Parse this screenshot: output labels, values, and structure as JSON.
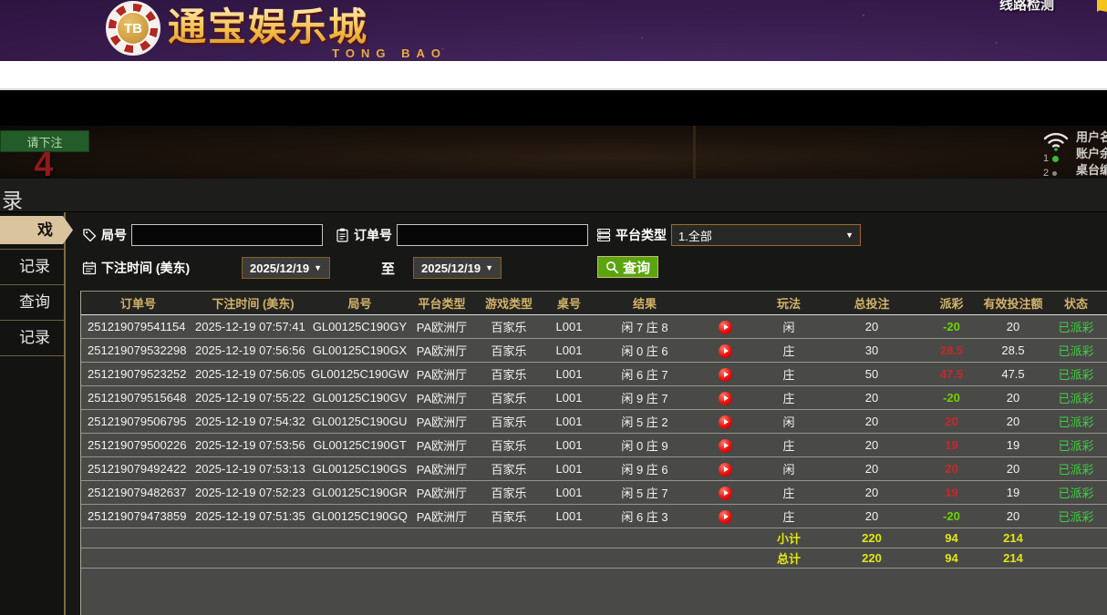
{
  "colors": {
    "accent_gold": "#d2b36a",
    "payout_positive": "#c22b2b",
    "payout_negative": "#6cd400",
    "status_green": "#3fd13f",
    "totals_yellow": "#e3e614",
    "button_green": "#5aa50e"
  },
  "header": {
    "logo_tb": "TB",
    "logo_title": "通宝娱乐城",
    "logo_subtitle": "TONG BAO",
    "line_check": "线路检测"
  },
  "game_bg": {
    "bet_prompt": "请下注",
    "countdown": "4",
    "user_label": "用户名称",
    "balance_label": "账户余额",
    "table_label": "桌台编号",
    "seat1": "1",
    "seat2": "2"
  },
  "panel": {
    "title": "录",
    "sidebar": [
      {
        "label": "戏",
        "active": true
      },
      {
        "label": "记录",
        "active": false
      },
      {
        "label": "查询",
        "active": false
      },
      {
        "label": "记录",
        "active": false
      }
    ]
  },
  "filters": {
    "game_no_label": "局号",
    "game_no_value": "",
    "order_no_label": "订单号",
    "order_no_value": "",
    "platform_label": "平台类型",
    "platform_value": "1.全部",
    "bet_time_label": "下注时间 (美东)",
    "date_from": "2025/12/19",
    "to_label": "至",
    "date_to": "2025/12/19",
    "search_label": "查询"
  },
  "table": {
    "headers": [
      "订单号",
      "下注时间 (美东)",
      "局号",
      "平台类型",
      "游戏类型",
      "桌号",
      "结果",
      "",
      "玩法",
      "总投注",
      "派彩",
      "有效投注额",
      "状态"
    ],
    "rows": [
      {
        "order_no": "251219079541154",
        "bet_time": "2025-12-19 07:57:41",
        "game_no": "GL00125C190GY",
        "platform": "PA欧洲厅",
        "game_type": "百家乐",
        "table_no": "L001",
        "result": "闲 7 庄 8",
        "bet_side": "闲",
        "total_bet": "20",
        "payout": "-20",
        "valid_bet": "20",
        "status": "已派彩"
      },
      {
        "order_no": "251219079532298",
        "bet_time": "2025-12-19 07:56:56",
        "game_no": "GL00125C190GX",
        "platform": "PA欧洲厅",
        "game_type": "百家乐",
        "table_no": "L001",
        "result": "闲 0 庄 6",
        "bet_side": "庄",
        "total_bet": "30",
        "payout": "28.5",
        "valid_bet": "28.5",
        "status": "已派彩"
      },
      {
        "order_no": "251219079523252",
        "bet_time": "2025-12-19 07:56:05",
        "game_no": "GL00125C190GW",
        "platform": "PA欧洲厅",
        "game_type": "百家乐",
        "table_no": "L001",
        "result": "闲 6 庄 7",
        "bet_side": "庄",
        "total_bet": "50",
        "payout": "47.5",
        "valid_bet": "47.5",
        "status": "已派彩"
      },
      {
        "order_no": "251219079515648",
        "bet_time": "2025-12-19 07:55:22",
        "game_no": "GL00125C190GV",
        "platform": "PA欧洲厅",
        "game_type": "百家乐",
        "table_no": "L001",
        "result": "闲 9 庄 7",
        "bet_side": "庄",
        "total_bet": "20",
        "payout": "-20",
        "valid_bet": "20",
        "status": "已派彩"
      },
      {
        "order_no": "251219079506795",
        "bet_time": "2025-12-19 07:54:32",
        "game_no": "GL00125C190GU",
        "platform": "PA欧洲厅",
        "game_type": "百家乐",
        "table_no": "L001",
        "result": "闲 5 庄 2",
        "bet_side": "闲",
        "total_bet": "20",
        "payout": "20",
        "valid_bet": "20",
        "status": "已派彩"
      },
      {
        "order_no": "251219079500226",
        "bet_time": "2025-12-19 07:53:56",
        "game_no": "GL00125C190GT",
        "platform": "PA欧洲厅",
        "game_type": "百家乐",
        "table_no": "L001",
        "result": "闲 0 庄 9",
        "bet_side": "庄",
        "total_bet": "20",
        "payout": "19",
        "valid_bet": "19",
        "status": "已派彩"
      },
      {
        "order_no": "251219079492422",
        "bet_time": "2025-12-19 07:53:13",
        "game_no": "GL00125C190GS",
        "platform": "PA欧洲厅",
        "game_type": "百家乐",
        "table_no": "L001",
        "result": "闲 9 庄 6",
        "bet_side": "闲",
        "total_bet": "20",
        "payout": "20",
        "valid_bet": "20",
        "status": "已派彩"
      },
      {
        "order_no": "251219079482637",
        "bet_time": "2025-12-19 07:52:23",
        "game_no": "GL00125C190GR",
        "platform": "PA欧洲厅",
        "game_type": "百家乐",
        "table_no": "L001",
        "result": "闲 5 庄 7",
        "bet_side": "庄",
        "total_bet": "20",
        "payout": "19",
        "valid_bet": "19",
        "status": "已派彩"
      },
      {
        "order_no": "251219079473859",
        "bet_time": "2025-12-19 07:51:35",
        "game_no": "GL00125C190GQ",
        "platform": "PA欧洲厅",
        "game_type": "百家乐",
        "table_no": "L001",
        "result": "闲 6 庄 3",
        "bet_side": "庄",
        "total_bet": "20",
        "payout": "-20",
        "valid_bet": "20",
        "status": "已派彩"
      }
    ],
    "subtotal": {
      "label": "小计",
      "total_bet": "220",
      "payout": "94",
      "valid_bet": "214"
    },
    "total": {
      "label": "总计",
      "total_bet": "220",
      "payout": "94",
      "valid_bet": "214"
    }
  }
}
